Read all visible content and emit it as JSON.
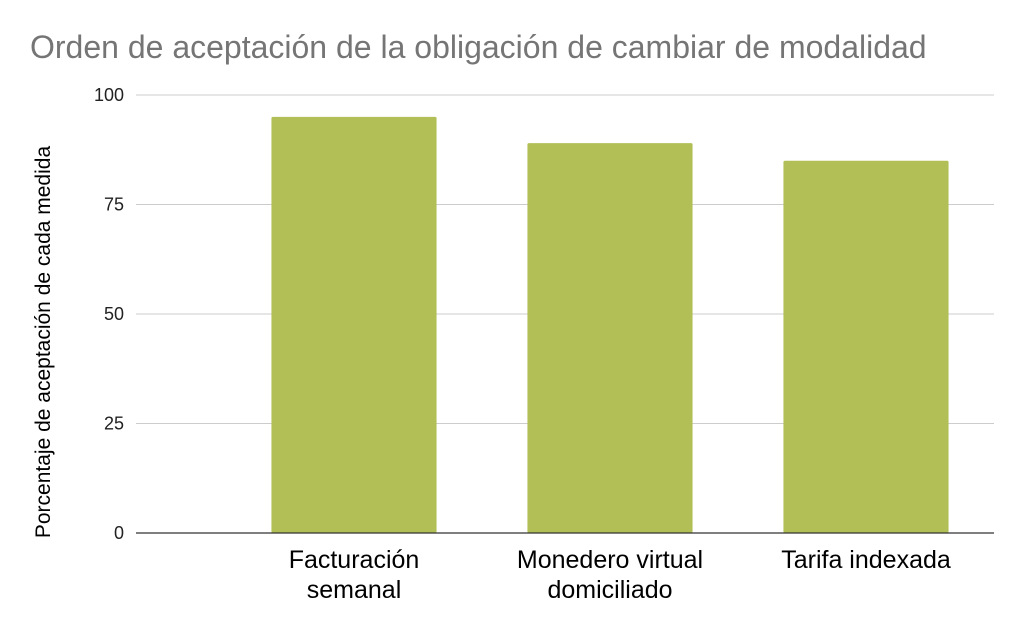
{
  "chart_data": {
    "type": "bar",
    "title": "Orden de aceptación de la obligación de cambiar de modalidad",
    "xlabel": "",
    "ylabel": "Porcentaje de aceptación de cada medida",
    "categories": [
      [
        "Facturación",
        "semanal"
      ],
      [
        "Monedero virtual",
        "domiciliado"
      ],
      [
        "Tarifa indexada"
      ]
    ],
    "values": [
      95,
      89,
      85
    ],
    "ylim": [
      0,
      100
    ],
    "yticks": [
      0,
      25,
      50,
      75,
      100
    ],
    "grid": true,
    "legend": "none",
    "bar_color": "#b2bf56"
  }
}
